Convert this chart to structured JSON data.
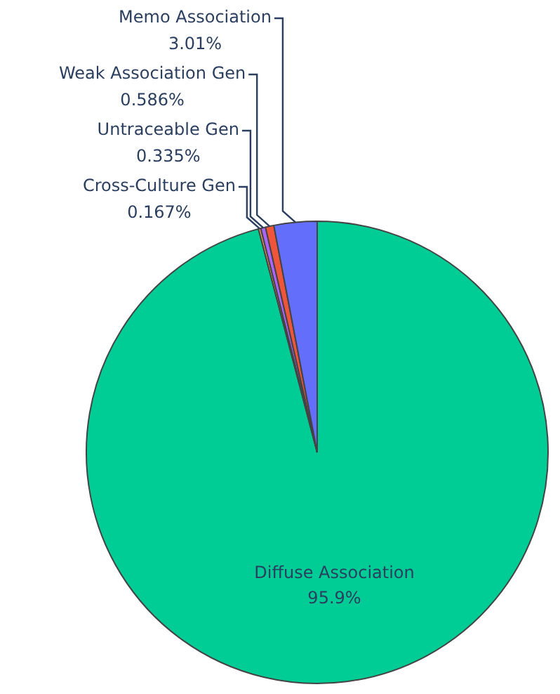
{
  "chart_data": {
    "type": "pie",
    "categories": [
      "Diffuse Association",
      "Cross-Culture Gen",
      "Untraceable Gen",
      "Weak Association Gen",
      "Memo Association"
    ],
    "values": [
      95.9,
      0.167,
      0.335,
      0.586,
      3.01
    ],
    "colors": [
      "#00cc96",
      "#ffa15a",
      "#ab63fa",
      "#ef553b",
      "#636efa"
    ],
    "value_labels": [
      "95.9%",
      "0.167%",
      "0.335%",
      "0.586%",
      "3.01%"
    ],
    "legend": false
  }
}
